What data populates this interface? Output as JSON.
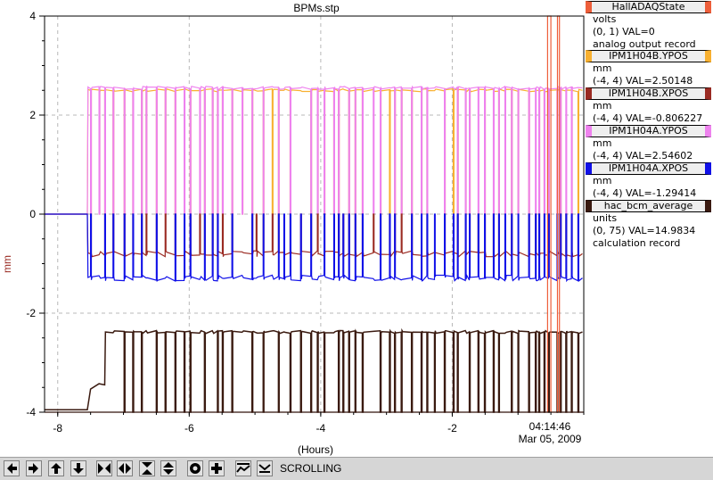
{
  "window": {
    "title": "BPMs.stp"
  },
  "plot": {
    "y_axis_label": "mm",
    "x_axis_label": "(Hours)",
    "time_label": "04:14:46",
    "date_label": "Mar 05, 2009"
  },
  "legend": [
    {
      "name": "HallADAQState",
      "color": "#ee5e3a",
      "lines": [
        "volts",
        "(0, 1) VAL=0",
        "analog output record"
      ]
    },
    {
      "name": "IPM1H04B.YPOS",
      "color": "#f8b030",
      "lines": [
        "mm",
        "(-4, 4) VAL=2.50148"
      ]
    },
    {
      "name": "IPM1H04B.XPOS",
      "color": "#9a2a22",
      "lines": [
        "mm",
        "(-4, 4) VAL=-0.806227"
      ]
    },
    {
      "name": "IPM1H04A.YPOS",
      "color": "#ee82ee",
      "lines": [
        "mm",
        "(-4, 4) VAL=2.54602"
      ]
    },
    {
      "name": "IPM1H04A.XPOS",
      "color": "#1010e8",
      "lines": [
        "mm",
        "(-4, 4) VAL=-1.29414"
      ]
    },
    {
      "name": "hac_bcm_average",
      "color": "#3a1a10",
      "lines": [
        "units",
        "(0, 75) VAL=14.9834",
        "calculation record"
      ]
    }
  ],
  "toolbar": {
    "status": "SCROLLING",
    "buttons": [
      "scroll-left",
      "scroll-right",
      "scroll-up",
      "scroll-down",
      "zoom-in-x",
      "zoom-out-x",
      "zoom-in-y",
      "zoom-out-y",
      "config",
      "add"
    ]
  },
  "chart_data": {
    "type": "line",
    "xlabel": "(Hours)",
    "ylabel": "mm",
    "xlim": [
      -8.2,
      0
    ],
    "ylim": [
      -4,
      4
    ],
    "x_ticks": [
      -8,
      -6,
      -4,
      -2
    ],
    "y_ticks": [
      -4,
      -2,
      0,
      2,
      4
    ],
    "grid": true,
    "legend_position": "right",
    "series": [
      {
        "name": "IPM1H04B.YPOS",
        "color": "#f8b030",
        "baseline": 2.5,
        "drop": 0
      },
      {
        "name": "IPM1H04A.YPOS",
        "color": "#ee82ee",
        "baseline": 2.55,
        "drop": 0
      },
      {
        "name": "IPM1H04B.XPOS",
        "color": "#9a2a22",
        "baseline": -0.8,
        "drop": 0
      },
      {
        "name": "IPM1H04A.XPOS",
        "color": "#1010e8",
        "baseline": -1.29,
        "drop": 0
      },
      {
        "name": "hac_bcm_average",
        "color": "#3a1a10",
        "baseline": -2.38,
        "drop": -4
      },
      {
        "name": "HallADAQState",
        "color": "#ee5e3a",
        "baseline": -4,
        "drop": 4
      }
    ]
  }
}
